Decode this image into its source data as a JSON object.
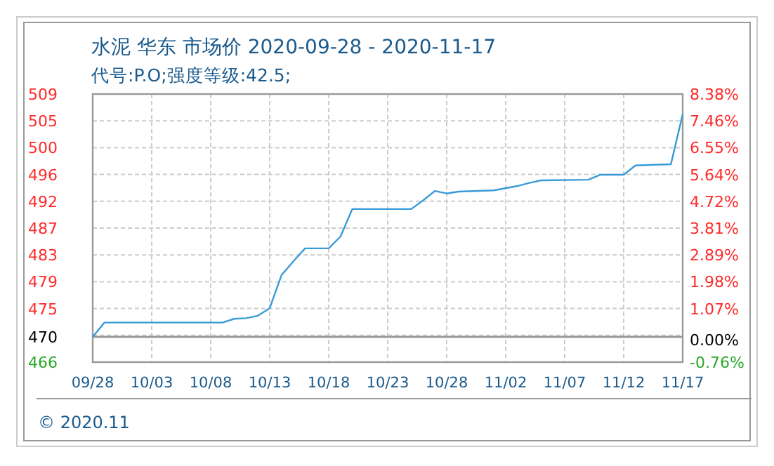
{
  "chart_data": {
    "type": "line",
    "title": "水泥 华东 市场价 2020-09-28 - 2020-11-17",
    "subtitle": "代号:P.O;强度等级:42.5;",
    "x": [
      "2020-09-28",
      "2020-09-29",
      "2020-10-09",
      "2020-10-10",
      "2020-10-11",
      "2020-10-12",
      "2020-10-13",
      "2020-10-14",
      "2020-10-15",
      "2020-10-16",
      "2020-10-18",
      "2020-10-19",
      "2020-10-20",
      "2020-10-25",
      "2020-10-26",
      "2020-10-27",
      "2020-10-28",
      "2020-10-29",
      "2020-11-01",
      "2020-11-03",
      "2020-11-04",
      "2020-11-05",
      "2020-11-09",
      "2020-11-10",
      "2020-11-12",
      "2020-11-13",
      "2020-11-16",
      "2020-11-17"
    ],
    "series": [
      {
        "color": "#3a9ad9",
        "values": [
          470,
          472.3,
          472.3,
          472.9,
          473.0,
          473.4,
          474.6,
          479.9,
          482.1,
          484.2,
          484.2,
          486.1,
          490.5,
          490.5,
          491.9,
          493.4,
          493.0,
          493.3,
          493.5,
          494.2,
          494.7,
          495.1,
          495.2,
          496.0,
          496.0,
          497.5,
          497.7,
          505.7
        ]
      }
    ],
    "xlim": [
      "2020-09-28",
      "2020-11-17"
    ],
    "xticks": [
      {
        "value": "2020-09-28",
        "label": "09/28"
      },
      {
        "value": "2020-10-03",
        "label": "10/03"
      },
      {
        "value": "2020-10-08",
        "label": "10/08"
      },
      {
        "value": "2020-10-13",
        "label": "10/13"
      },
      {
        "value": "2020-10-18",
        "label": "10/18"
      },
      {
        "value": "2020-10-23",
        "label": "10/23"
      },
      {
        "value": "2020-10-28",
        "label": "10/28"
      },
      {
        "value": "2020-11-02",
        "label": "11/02"
      },
      {
        "value": "2020-11-07",
        "label": "11/07"
      },
      {
        "value": "2020-11-12",
        "label": "11/12"
      },
      {
        "value": "2020-11-17",
        "label": "11/17"
      }
    ],
    "ylim": [
      465.95,
      508.95
    ],
    "yticks": [
      {
        "value": 465.95,
        "label": "466"
      },
      {
        "value": 470,
        "label": "470"
      },
      {
        "value": 470.25,
        "label": null
      },
      {
        "value": 474.55,
        "label": "475"
      },
      {
        "value": 478.85,
        "label": "479"
      },
      {
        "value": 483.15,
        "label": "483"
      },
      {
        "value": 487.45,
        "label": "487"
      },
      {
        "value": 491.75,
        "label": "492"
      },
      {
        "value": 496.05,
        "label": "496"
      },
      {
        "value": 500.35,
        "label": "500"
      },
      {
        "value": 504.65,
        "label": "505"
      },
      {
        "value": 508.95,
        "label": "509"
      }
    ],
    "y2lim": [
      -0.76,
      8.38
    ],
    "y2ticks": [
      {
        "value": -0.76,
        "label": "-0.76%"
      },
      {
        "value": 0,
        "label": "0.00%"
      },
      {
        "value": 1.07,
        "label": "1.07%"
      },
      {
        "value": 1.98,
        "label": "1.98%"
      },
      {
        "value": 2.89,
        "label": "2.89%"
      },
      {
        "value": 3.81,
        "label": "3.81%"
      },
      {
        "value": 4.72,
        "label": "4.72%"
      },
      {
        "value": 5.64,
        "label": "5.64%"
      },
      {
        "value": 6.55,
        "label": "6.55%"
      },
      {
        "value": 7.46,
        "label": "7.46%"
      },
      {
        "value": 8.38,
        "label": "8.38%"
      }
    ],
    "ref_lines": [
      {
        "axis": "y",
        "value": 470,
        "color": "#999999"
      }
    ],
    "grid": true,
    "annotations": [
      "© 2020.11"
    ]
  }
}
